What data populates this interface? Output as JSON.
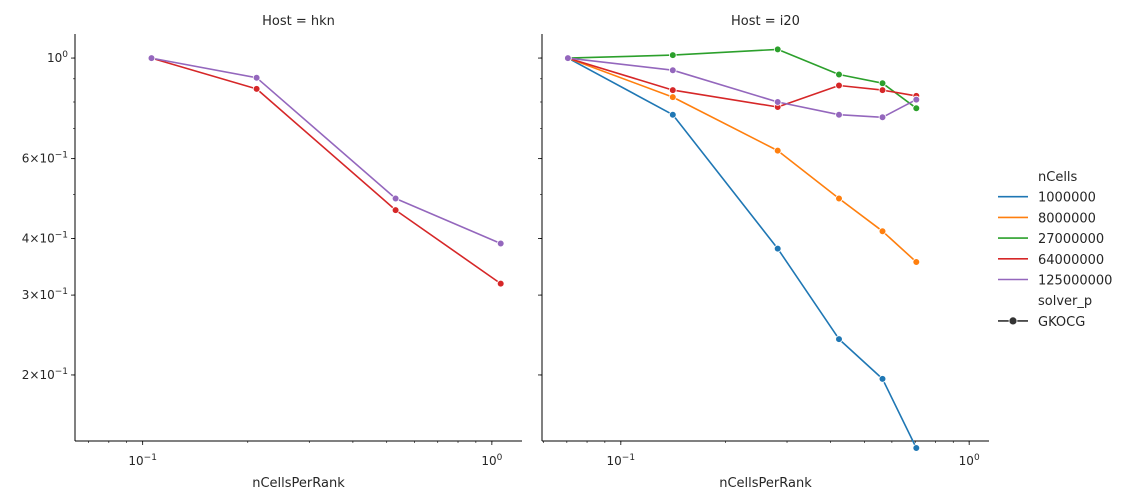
{
  "chart_data": {
    "type": "line",
    "x_label": "nCellsPerRank",
    "x_scale": "log",
    "y_scale": "log",
    "shared_y": true,
    "grid": false,
    "legend_placement": "right",
    "x_ticks": [
      {
        "value": 0.1,
        "base": "10",
        "exp": "−1"
      },
      {
        "value": 1,
        "base": "10",
        "exp": "0"
      }
    ],
    "y_ticks": [
      {
        "value": 0.2,
        "mant": "2",
        "base": "10",
        "exp": "−1"
      },
      {
        "value": 0.3,
        "mant": "3",
        "base": "10",
        "exp": "−1"
      },
      {
        "value": 0.4,
        "mant": "4",
        "base": "10",
        "exp": "−1"
      },
      {
        "value": 0.6,
        "mant": "6",
        "base": "10",
        "exp": "−1"
      },
      {
        "value": 1,
        "mant": "",
        "base": "10",
        "exp": "0"
      }
    ],
    "legend": {
      "hue_title": "nCells",
      "style_title": "solver_p",
      "style_entries": [
        "GKOCG"
      ]
    },
    "colors": {
      "1000000": "#1f77b4",
      "8000000": "#ff7f0e",
      "27000000": "#2ca02c",
      "64000000": "#d62728",
      "125000000": "#9467bd"
    },
    "hue_order": [
      "1000000",
      "8000000",
      "27000000",
      "64000000",
      "125000000"
    ],
    "panels": [
      {
        "title": "Host = hkn",
        "xlim": [
          0.064,
          1.22
        ],
        "ylim": [
          0.143,
          1.13
        ],
        "series": [
          {
            "name": "64000000",
            "x": [
              0.106,
              0.212,
              0.53,
              1.06
            ],
            "y": [
              1.0,
              0.855,
              0.462,
              0.318
            ]
          },
          {
            "name": "125000000",
            "x": [
              0.106,
              0.212,
              0.53,
              1.06
            ],
            "y": [
              1.0,
              0.905,
              0.49,
              0.39
            ]
          }
        ]
      },
      {
        "title": "Host = i20",
        "xlim": [
          0.0594,
          1.14
        ],
        "ylim": [
          0.143,
          1.13
        ],
        "series": [
          {
            "name": "1000000",
            "x": [
              0.0705,
              0.141,
              0.282,
              0.423,
              0.564,
              0.705
            ],
            "y": [
              1.0,
              0.75,
              0.38,
              0.24,
              0.196,
              0.138
            ]
          },
          {
            "name": "8000000",
            "x": [
              0.0705,
              0.141,
              0.282,
              0.423,
              0.564,
              0.705
            ],
            "y": [
              1.0,
              0.82,
              0.625,
              0.49,
              0.415,
              0.355
            ]
          },
          {
            "name": "27000000",
            "x": [
              0.0705,
              0.141,
              0.282,
              0.423,
              0.564,
              0.705
            ],
            "y": [
              1.0,
              1.015,
              1.045,
              0.92,
              0.88,
              0.775
            ]
          },
          {
            "name": "64000000",
            "x": [
              0.0705,
              0.141,
              0.282,
              0.423,
              0.564,
              0.705
            ],
            "y": [
              1.0,
              0.85,
              0.78,
              0.87,
              0.85,
              0.825
            ]
          },
          {
            "name": "125000000",
            "x": [
              0.0705,
              0.141,
              0.282,
              0.423,
              0.564,
              0.705
            ],
            "y": [
              1.0,
              0.94,
              0.8,
              0.75,
              0.74,
              0.81
            ]
          }
        ]
      }
    ]
  }
}
